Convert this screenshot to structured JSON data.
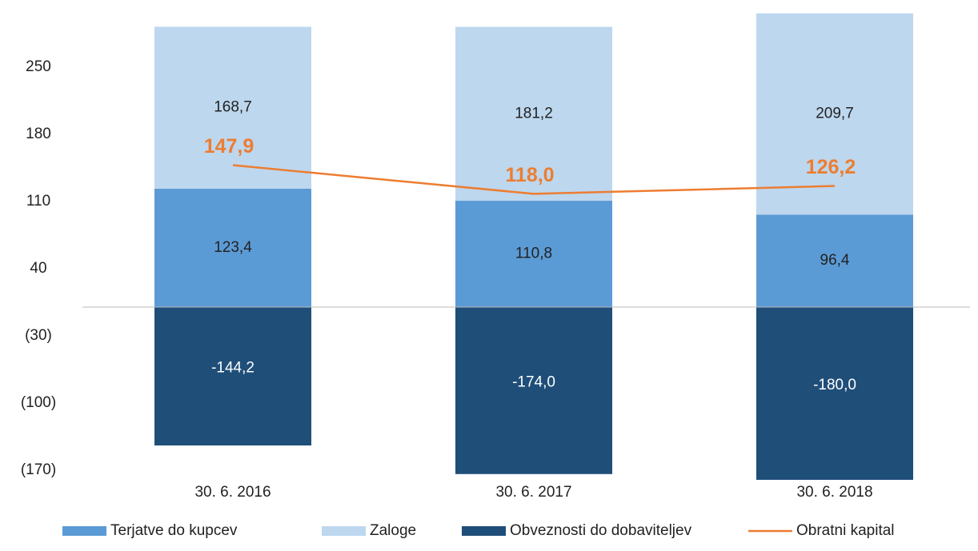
{
  "chart_data": {
    "type": "bar",
    "stacked": true,
    "categories": [
      "30. 6. 2016",
      "30. 6. 2017",
      "30. 6. 2018"
    ],
    "series": [
      {
        "name": "Terjatve do kupcev",
        "color": "#5b9bd5",
        "values": [
          123.4,
          110.8,
          96.4
        ],
        "value_labels": [
          "123,4",
          "110,8",
          "96,4"
        ]
      },
      {
        "name": "Zaloge",
        "color": "#bdd7ee",
        "values": [
          168.7,
          181.2,
          209.7
        ],
        "value_labels": [
          "168,7",
          "181,2",
          "209,7"
        ]
      },
      {
        "name": "Obveznosti do dobaviteljev",
        "color": "#1f4e79",
        "values": [
          -144.2,
          -174.0,
          -180.0
        ],
        "value_labels": [
          "-144,2",
          "-174,0",
          "-180,0"
        ]
      },
      {
        "name": "Obratni kapital",
        "type": "line",
        "color": "#ed7d31",
        "values": [
          147.9,
          118.0,
          126.2
        ],
        "value_labels": [
          "147,9",
          "118,0",
          "126,2"
        ]
      }
    ],
    "ylim": [
      -180,
      310
    ],
    "yticks": [
      {
        "value": -170,
        "label": "(170)"
      },
      {
        "value": -100,
        "label": "(100)"
      },
      {
        "value": -30,
        "label": "(30)"
      },
      40,
      110,
      180,
      250
    ],
    "grid": false,
    "legend": "bottom"
  }
}
